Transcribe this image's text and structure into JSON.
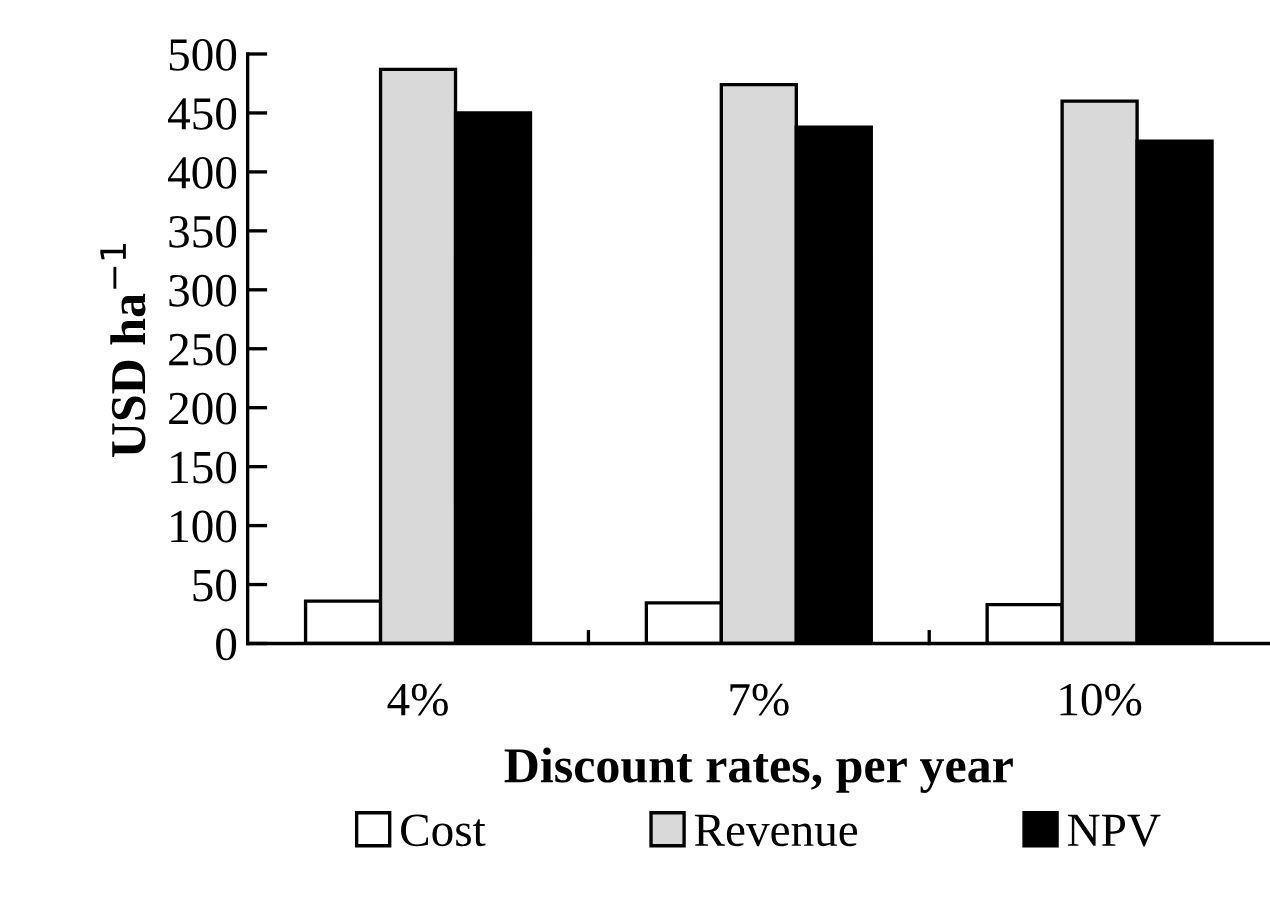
{
  "chart_data": {
    "type": "bar",
    "xlabel": "Discount rates, per year",
    "ylabel": "USD ha$^{−1}$",
    "categories": [
      "4%",
      "7%",
      "10%"
    ],
    "series": [
      {
        "name": "Cost",
        "color": "#ffffff",
        "values": [
          36,
          34.5,
          33
        ]
      },
      {
        "name": "Revenue",
        "color": "#d9d9d9",
        "values": [
          487,
          474,
          460
        ]
      },
      {
        "name": "NPV",
        "color": "#000000",
        "values": [
          450,
          438,
          426
        ]
      }
    ],
    "ylim": [
      0,
      500
    ],
    "yticks": [
      0,
      50,
      100,
      150,
      200,
      250,
      300,
      350,
      400,
      450,
      500
    ],
    "grid": false,
    "legend": "bottom"
  }
}
